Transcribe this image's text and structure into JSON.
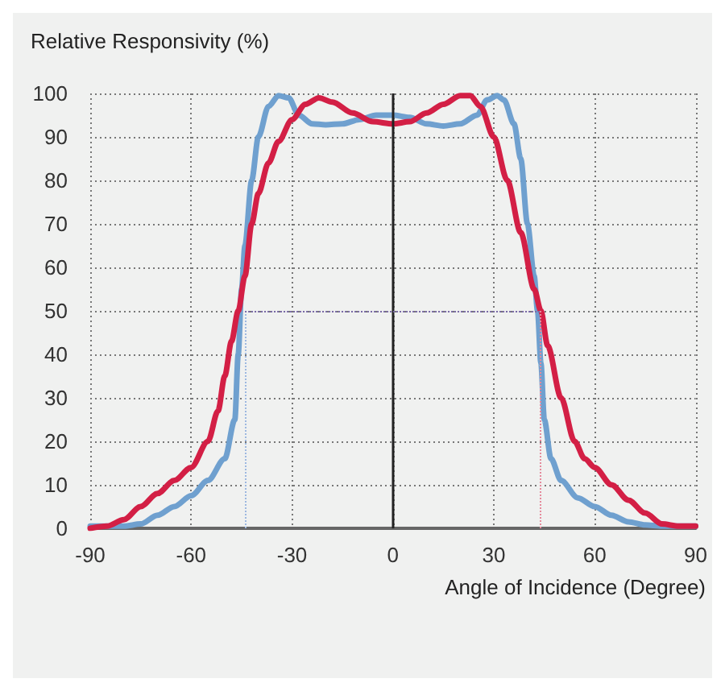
{
  "chart_data": {
    "type": "line",
    "ylabel": "Relative Responsivity (%)",
    "xlabel": "Angle of Incidence (Degree)",
    "xlim": [
      -90,
      90
    ],
    "xticks": [
      -90,
      -60,
      -30,
      0,
      30,
      60,
      90
    ],
    "ylim": [
      0,
      100
    ],
    "yticks": [
      0,
      10,
      20,
      30,
      40,
      50,
      60,
      70,
      80,
      90,
      100
    ],
    "grid": true,
    "legend": false,
    "marker": "none",
    "line_style": "solid",
    "series": [
      {
        "color": "#6fa0cf",
        "x": [
          -90,
          -80,
          -75,
          -70,
          -65,
          -60,
          -55,
          -50,
          -47,
          -46,
          -45,
          -44,
          -42,
          -40,
          -37,
          -34,
          -31,
          -28,
          -24,
          -20,
          -15,
          -10,
          -5,
          0,
          5,
          10,
          15,
          20,
          25,
          28,
          31,
          33,
          36,
          38,
          40,
          42,
          43,
          44,
          45,
          47,
          50,
          55,
          60,
          65,
          70,
          75,
          80,
          90
        ],
        "values": [
          0.5,
          0.5,
          1,
          3,
          5,
          7.5,
          11,
          16,
          25,
          40,
          55,
          65,
          80,
          90,
          97,
          99.5,
          99,
          95,
          93,
          92.8,
          93,
          94,
          95,
          95,
          94.5,
          93,
          92.5,
          93,
          95,
          98.5,
          99.5,
          98.5,
          93,
          85,
          70,
          58,
          50,
          38,
          25,
          16,
          11,
          7,
          5,
          3,
          1.5,
          0.8,
          0.5,
          0.5
        ]
      },
      {
        "color": "#d31f45",
        "x": [
          -90,
          -85,
          -80,
          -75,
          -70,
          -65,
          -60,
          -55,
          -52,
          -50,
          -48,
          -46,
          -44,
          -42,
          -40,
          -37,
          -34,
          -30,
          -26,
          -22,
          -18,
          -12,
          -6,
          0,
          5,
          10,
          15,
          20,
          23,
          26,
          30,
          34,
          38,
          42,
          44,
          46,
          50,
          54,
          57,
          60,
          65,
          70,
          75,
          80,
          85,
          90
        ],
        "values": [
          0,
          0.5,
          2,
          5,
          8,
          11,
          14,
          20,
          27,
          35,
          43,
          50,
          58,
          70,
          77,
          84,
          89,
          94,
          97.5,
          99,
          98,
          95.5,
          93.5,
          93,
          93.5,
          95.5,
          97.5,
          99.5,
          99.5,
          97,
          90,
          80,
          68,
          55,
          50,
          42,
          30,
          20,
          16,
          14,
          10,
          6.5,
          3.5,
          1,
          0.5,
          0.5
        ]
      }
    ],
    "ref_lines": [
      {
        "axis": "x",
        "value": 0,
        "color": "#222222",
        "line_style": "solid"
      },
      {
        "axis": "y",
        "value": 50,
        "color": "#7a6aa8",
        "line_style": "dotted"
      },
      {
        "axis": "x",
        "value": -44,
        "color": "#9db8e0",
        "line_style": "dotted"
      },
      {
        "axis": "x",
        "value": 44,
        "color": "#e58a9c",
        "line_style": "dotted"
      }
    ]
  }
}
